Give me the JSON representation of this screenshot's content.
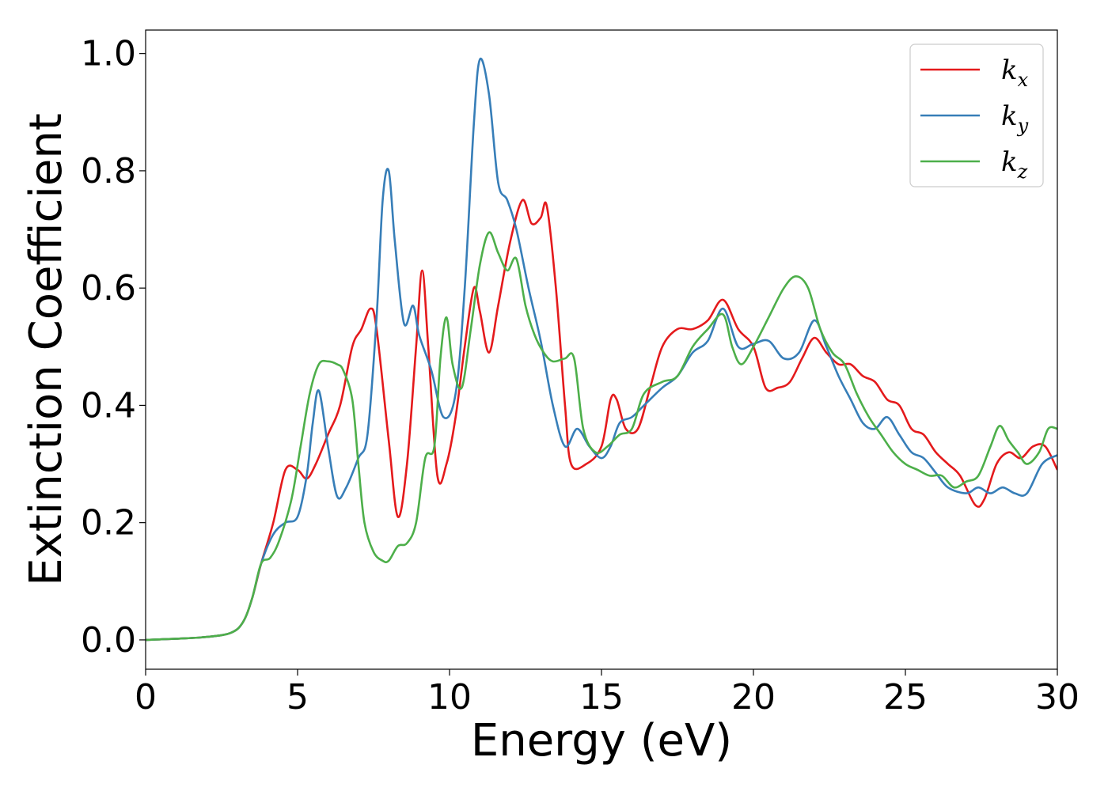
{
  "chart_data": {
    "type": "line",
    "xlabel": "Energy (eV)",
    "ylabel": "Extinction Coefficient",
    "xlim": [
      0,
      30
    ],
    "ylim": [
      -0.05,
      1.04
    ],
    "xticks": [
      0,
      5,
      10,
      15,
      20,
      25,
      30
    ],
    "yticks": [
      0.0,
      0.2,
      0.4,
      0.6,
      0.8,
      1.0
    ],
    "legend_position": "top-right",
    "grid": false,
    "series": [
      {
        "name": "k_x",
        "label_base": "k",
        "label_sub": "x",
        "color": "#e41a1c",
        "x": [
          0,
          1,
          2,
          2.8,
          3.2,
          3.5,
          3.8,
          4.2,
          4.6,
          5.0,
          5.3,
          5.6,
          6.0,
          6.4,
          6.8,
          7.1,
          7.4,
          7.6,
          8.0,
          8.3,
          8.6,
          8.9,
          9.1,
          9.3,
          9.6,
          9.9,
          10.2,
          10.5,
          10.8,
          11.0,
          11.3,
          11.6,
          12.0,
          12.4,
          12.7,
          13.0,
          13.2,
          13.5,
          13.8,
          14.0,
          14.5,
          15.0,
          15.3,
          15.5,
          15.8,
          16.2,
          16.6,
          17.0,
          17.5,
          18.0,
          18.5,
          19.0,
          19.5,
          20.0,
          20.4,
          20.8,
          21.2,
          21.6,
          22.0,
          22.4,
          22.8,
          23.2,
          23.6,
          24.0,
          24.4,
          24.8,
          25.2,
          25.6,
          26.0,
          26.4,
          26.8,
          27.3,
          27.6,
          28.0,
          28.4,
          28.8,
          29.2,
          29.6,
          30.0
        ],
        "values": [
          0.0,
          0.002,
          0.005,
          0.012,
          0.03,
          0.07,
          0.13,
          0.2,
          0.29,
          0.29,
          0.275,
          0.3,
          0.35,
          0.4,
          0.5,
          0.53,
          0.565,
          0.53,
          0.34,
          0.21,
          0.3,
          0.5,
          0.63,
          0.5,
          0.28,
          0.3,
          0.38,
          0.5,
          0.6,
          0.56,
          0.49,
          0.57,
          0.68,
          0.75,
          0.71,
          0.72,
          0.74,
          0.6,
          0.4,
          0.3,
          0.3,
          0.33,
          0.41,
          0.41,
          0.36,
          0.36,
          0.43,
          0.5,
          0.53,
          0.53,
          0.545,
          0.58,
          0.53,
          0.5,
          0.43,
          0.43,
          0.44,
          0.48,
          0.515,
          0.49,
          0.47,
          0.47,
          0.45,
          0.44,
          0.41,
          0.4,
          0.36,
          0.35,
          0.32,
          0.3,
          0.28,
          0.23,
          0.24,
          0.3,
          0.32,
          0.31,
          0.33,
          0.33,
          0.29
        ]
      },
      {
        "name": "k_y",
        "label_base": "k",
        "label_sub": "y",
        "color": "#377eb8",
        "x": [
          0,
          1,
          2,
          2.8,
          3.2,
          3.5,
          3.8,
          4.2,
          4.6,
          5.0,
          5.3,
          5.5,
          5.7,
          6.0,
          6.3,
          6.6,
          7.0,
          7.3,
          7.6,
          7.8,
          8.0,
          8.2,
          8.5,
          8.8,
          9.0,
          9.4,
          9.8,
          10.2,
          10.5,
          10.8,
          11.0,
          11.3,
          11.6,
          11.9,
          12.2,
          12.6,
          13.0,
          13.4,
          13.8,
          14.2,
          14.6,
          15.0,
          15.3,
          15.6,
          16.0,
          16.4,
          17.0,
          17.5,
          18.0,
          18.5,
          19.0,
          19.5,
          20.0,
          20.5,
          21.0,
          21.5,
          22.0,
          22.4,
          22.8,
          23.2,
          23.6,
          24.0,
          24.4,
          24.8,
          25.2,
          25.6,
          26.0,
          26.4,
          27.0,
          27.4,
          27.8,
          28.2,
          28.6,
          29.0,
          29.5,
          30.0
        ],
        "values": [
          0.0,
          0.002,
          0.005,
          0.012,
          0.03,
          0.07,
          0.13,
          0.18,
          0.2,
          0.21,
          0.28,
          0.37,
          0.425,
          0.33,
          0.245,
          0.26,
          0.31,
          0.35,
          0.55,
          0.75,
          0.8,
          0.68,
          0.54,
          0.57,
          0.52,
          0.46,
          0.38,
          0.42,
          0.6,
          0.88,
          0.99,
          0.93,
          0.78,
          0.75,
          0.7,
          0.6,
          0.51,
          0.4,
          0.33,
          0.36,
          0.33,
          0.31,
          0.33,
          0.37,
          0.38,
          0.4,
          0.43,
          0.45,
          0.49,
          0.51,
          0.565,
          0.5,
          0.505,
          0.51,
          0.48,
          0.49,
          0.545,
          0.5,
          0.45,
          0.41,
          0.37,
          0.36,
          0.38,
          0.35,
          0.32,
          0.31,
          0.285,
          0.26,
          0.25,
          0.26,
          0.25,
          0.26,
          0.25,
          0.25,
          0.3,
          0.315
        ]
      },
      {
        "name": "k_z",
        "label_base": "k",
        "label_sub": "z",
        "color": "#4daf4a",
        "x": [
          0,
          1,
          2,
          2.8,
          3.2,
          3.5,
          3.8,
          4.1,
          4.4,
          4.8,
          5.1,
          5.4,
          5.7,
          6.0,
          6.3,
          6.5,
          6.8,
          7.0,
          7.2,
          7.5,
          7.8,
          8.0,
          8.3,
          8.6,
          8.9,
          9.2,
          9.5,
          9.7,
          9.9,
          10.1,
          10.4,
          10.7,
          11.0,
          11.3,
          11.6,
          11.9,
          12.2,
          12.5,
          12.8,
          13.1,
          13.4,
          13.8,
          14.1,
          14.4,
          14.8,
          15.2,
          15.6,
          16.0,
          16.4,
          17.0,
          17.5,
          18.0,
          18.5,
          19.0,
          19.3,
          19.6,
          20.0,
          20.5,
          21.0,
          21.4,
          21.8,
          22.2,
          22.6,
          23.0,
          23.4,
          23.8,
          24.2,
          24.6,
          25.0,
          25.4,
          25.8,
          26.2,
          26.6,
          27.0,
          27.4,
          27.8,
          28.1,
          28.4,
          28.7,
          29.0,
          29.4,
          29.7,
          30.0
        ],
        "values": [
          0.0,
          0.002,
          0.005,
          0.012,
          0.03,
          0.07,
          0.13,
          0.14,
          0.17,
          0.24,
          0.33,
          0.42,
          0.47,
          0.475,
          0.47,
          0.46,
          0.41,
          0.3,
          0.2,
          0.15,
          0.135,
          0.135,
          0.16,
          0.165,
          0.2,
          0.31,
          0.33,
          0.48,
          0.55,
          0.47,
          0.43,
          0.53,
          0.64,
          0.695,
          0.66,
          0.63,
          0.65,
          0.57,
          0.52,
          0.49,
          0.475,
          0.48,
          0.48,
          0.36,
          0.32,
          0.33,
          0.35,
          0.36,
          0.42,
          0.44,
          0.45,
          0.5,
          0.53,
          0.555,
          0.5,
          0.47,
          0.5,
          0.55,
          0.6,
          0.62,
          0.6,
          0.53,
          0.49,
          0.47,
          0.42,
          0.38,
          0.35,
          0.32,
          0.3,
          0.29,
          0.28,
          0.28,
          0.26,
          0.27,
          0.28,
          0.33,
          0.365,
          0.34,
          0.32,
          0.3,
          0.32,
          0.36,
          0.36
        ]
      }
    ]
  }
}
